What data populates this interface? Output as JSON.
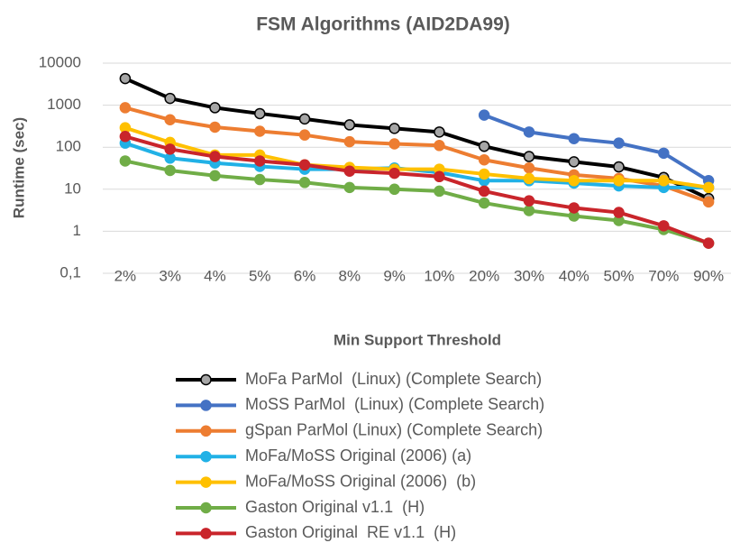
{
  "chart_data": {
    "type": "line",
    "title": "FSM Algorithms (AID2DA99)",
    "x_label": "Min Support Threshold",
    "y_label": "Runtime (sec)",
    "categories": [
      "2%",
      "3%",
      "4%",
      "5%",
      "6%",
      "8%",
      "9%",
      "10%",
      "20%",
      "30%",
      "40%",
      "50%",
      "70%",
      "90%"
    ],
    "log_scale": true,
    "grid": true,
    "legend": "bottom",
    "ylim": [
      0.1,
      10000
    ],
    "yticks": [
      {
        "value": 0.1,
        "label": "0,1"
      },
      1,
      10,
      100,
      1000,
      10000
    ],
    "series": [
      {
        "name": "MoFa ParMol  (Linux) (Complete Search)",
        "color": "#000000",
        "values": [
          4300,
          1450,
          870,
          630,
          470,
          340,
          280,
          230,
          105,
          60,
          45,
          34,
          19,
          6
        ]
      },
      {
        "name": "MoSS ParMol  (Linux) (Complete Search)",
        "color": "#4472c4",
        "values": [
          null,
          null,
          null,
          null,
          null,
          null,
          null,
          null,
          580,
          230,
          160,
          125,
          72,
          16
        ]
      },
      {
        "name": "gSpan ParMol (Linux) (Complete Search)",
        "color": "#ed7d31",
        "values": [
          870,
          450,
          300,
          240,
          195,
          135,
          120,
          110,
          50,
          32,
          22,
          18,
          12,
          5
        ]
      },
      {
        "name": "MoFa/MoSS Original (2006) (a)",
        "color": "#21b1e6",
        "values": [
          125,
          55,
          42,
          35,
          30,
          30,
          32,
          25,
          16,
          16,
          14,
          12,
          11,
          11
        ]
      },
      {
        "name": "MoFa/MoSS Original (2006)  (b)",
        "color": "#ffc000",
        "values": [
          290,
          130,
          65,
          65,
          38,
          33,
          30,
          30,
          23,
          18,
          16,
          16,
          16,
          11
        ]
      },
      {
        "name": "Gaston Original v1.1  (H)",
        "color": "#70ad47",
        "values": [
          47,
          28,
          21,
          17,
          14.5,
          11,
          10,
          9,
          4.7,
          3.1,
          2.3,
          1.8,
          1.1,
          0.52
        ]
      },
      {
        "name": "Gaston Original  RE v1.1  (H)",
        "color": "#c9252b",
        "values": [
          180,
          90,
          60,
          47,
          38,
          27,
          24,
          20,
          9,
          5.3,
          3.6,
          2.8,
          1.35,
          0.52
        ]
      }
    ]
  }
}
